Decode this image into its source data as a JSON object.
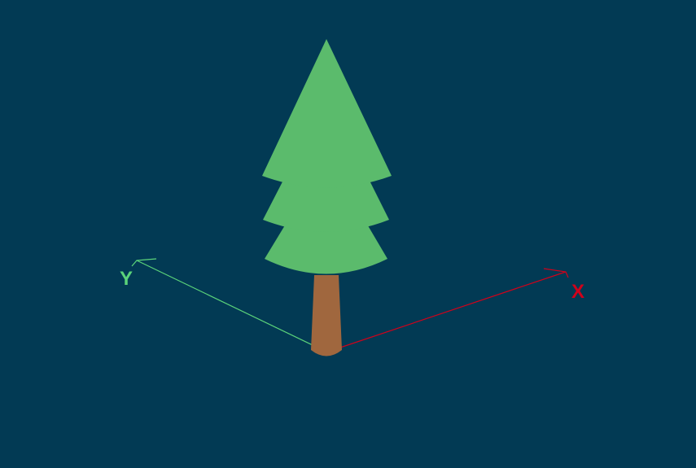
{
  "scene": {
    "background_color": "#023a54"
  },
  "axes": {
    "x": {
      "label": "X",
      "color": "#d0021b"
    },
    "y": {
      "label": "Y",
      "color": "#5bd37a"
    }
  },
  "tree": {
    "foliage_color": "#5bbb6c",
    "trunk_color": "#a0673e"
  }
}
